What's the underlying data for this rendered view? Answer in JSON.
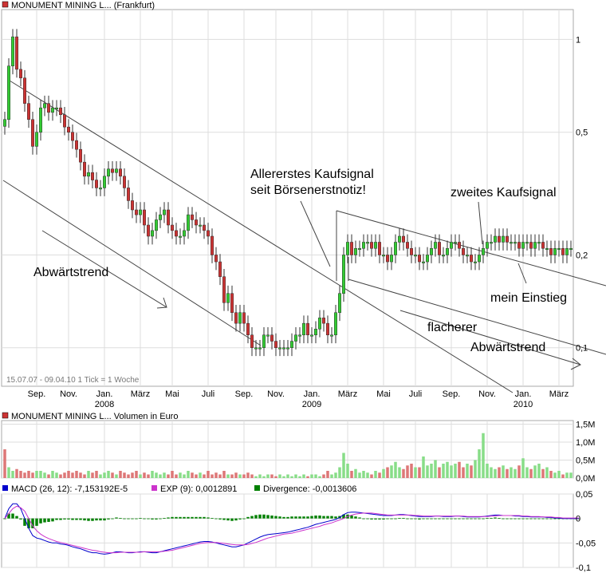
{
  "colors": {
    "up": "#33cc33",
    "down": "#cc3333",
    "grid": "#dddddd",
    "macd": "#0000cc",
    "exp": "#cc33cc",
    "div": "#008000",
    "vol_up": "#88dd88",
    "vol_down": "#dd7777"
  },
  "chart_data": [
    {
      "type": "candlestick",
      "title": "MONUMENT MINING L... (Frankfurt)",
      "subtitle": "15.07.07 - 09.04.10   1 Tick = 1 Woche",
      "yscale": "log",
      "ylim": [
        0.075,
        1.25
      ],
      "y_ticks": [
        {
          "v": 1,
          "label": "1"
        },
        {
          "v": 0.5,
          "label": "0,5"
        },
        {
          "v": 0.2,
          "label": "0,2"
        },
        {
          "v": 0.1,
          "label": "0,1"
        }
      ],
      "x_ticks": [
        {
          "w": 8,
          "label": "Sep."
        },
        {
          "w": 16,
          "label": "Nov."
        },
        {
          "w": 25,
          "label": "Jan.",
          "year": "2008"
        },
        {
          "w": 34,
          "label": "März"
        },
        {
          "w": 42,
          "label": "Mai"
        },
        {
          "w": 51,
          "label": "Juli"
        },
        {
          "w": 60,
          "label": "Sep."
        },
        {
          "w": 68,
          "label": "Nov."
        },
        {
          "w": 77,
          "label": "Jan.",
          "year": "2009"
        },
        {
          "w": 86,
          "label": "März"
        },
        {
          "w": 95,
          "label": "Mai"
        },
        {
          "w": 103,
          "label": "Juli"
        },
        {
          "w": 112,
          "label": "Sep."
        },
        {
          "w": 121,
          "label": "Nov."
        },
        {
          "w": 130,
          "label": "Jan.",
          "year": "2010"
        },
        {
          "w": 139,
          "label": "März"
        }
      ],
      "weekly_close": [
        0.55,
        0.82,
        1.02,
        0.8,
        0.75,
        0.62,
        0.55,
        0.45,
        0.5,
        0.6,
        0.62,
        0.58,
        0.6,
        0.6,
        0.57,
        0.52,
        0.5,
        0.47,
        0.44,
        0.4,
        0.36,
        0.37,
        0.35,
        0.33,
        0.33,
        0.36,
        0.38,
        0.37,
        0.38,
        0.36,
        0.33,
        0.3,
        0.28,
        0.27,
        0.28,
        0.25,
        0.23,
        0.24,
        0.26,
        0.27,
        0.28,
        0.25,
        0.24,
        0.23,
        0.23,
        0.24,
        0.27,
        0.26,
        0.25,
        0.25,
        0.24,
        0.23,
        0.2,
        0.19,
        0.17,
        0.14,
        0.15,
        0.13,
        0.12,
        0.13,
        0.12,
        0.11,
        0.1,
        0.1,
        0.1,
        0.11,
        0.11,
        0.105,
        0.1,
        0.1,
        0.1,
        0.1,
        0.105,
        0.11,
        0.11,
        0.12,
        0.11,
        0.11,
        0.115,
        0.125,
        0.12,
        0.11,
        0.11,
        0.13,
        0.15,
        0.2,
        0.22,
        0.2,
        0.21,
        0.21,
        0.22,
        0.22,
        0.21,
        0.22,
        0.2,
        0.2,
        0.19,
        0.2,
        0.22,
        0.23,
        0.22,
        0.21,
        0.2,
        0.2,
        0.19,
        0.19,
        0.2,
        0.21,
        0.22,
        0.2,
        0.2,
        0.21,
        0.22,
        0.22,
        0.21,
        0.2,
        0.2,
        0.19,
        0.19,
        0.2,
        0.21,
        0.22,
        0.22,
        0.23,
        0.22,
        0.23,
        0.22,
        0.22,
        0.22,
        0.21,
        0.22,
        0.22,
        0.21,
        0.22,
        0.22,
        0.21,
        0.21,
        0.2,
        0.21,
        0.21,
        0.2,
        0.21,
        0.21
      ],
      "annotations": [
        "Abwärtstrend",
        "Allererstes Kaufsignal",
        "seit Börsenerstnotiz!",
        "zweites Kaufsignal",
        "mein Einstieg",
        "flacherer",
        "Abwärtstrend"
      ]
    },
    {
      "type": "bar",
      "title": "MONUMENT MINING L... Volumen in Euro",
      "y_ticks": [
        {
          "v": 0,
          "label": "0,0M"
        },
        {
          "v": 0.5,
          "label": "0,5M"
        },
        {
          "v": 1.0,
          "label": "1,0M"
        },
        {
          "v": 1.5,
          "label": "1,5M"
        }
      ],
      "ylim": [
        0,
        1.6
      ],
      "values_millions": [
        0.8,
        0.3,
        0.2,
        0.25,
        0.2,
        0.15,
        0.2,
        0.15,
        0.2,
        0.2,
        0.15,
        0.1,
        0.2,
        0.15,
        0.1,
        0.15,
        0.2,
        0.15,
        0.2,
        0.15,
        0.1,
        0.2,
        0.15,
        0.2,
        0.1,
        0.15,
        0.2,
        0.15,
        0.1,
        0.2,
        0.15,
        0.1,
        0.15,
        0.2,
        0.1,
        0.15,
        0.1,
        0.2,
        0.15,
        0.1,
        0.15,
        0.1,
        0.2,
        0.1,
        0.15,
        0.1,
        0.2,
        0.15,
        0.1,
        0.15,
        0.1,
        0.2,
        0.1,
        0.15,
        0.1,
        0.2,
        0.1,
        0.1,
        0.15,
        0.1,
        0.1,
        0.15,
        0.1,
        0.05,
        0.1,
        0.05,
        0.1,
        0.1,
        0.05,
        0.1,
        0.05,
        0.1,
        0.05,
        0.1,
        0.05,
        0.1,
        0.05,
        0.1,
        0.1,
        0.05,
        0.1,
        0.2,
        0.1,
        0.15,
        0.3,
        0.7,
        0.4,
        0.2,
        0.25,
        0.15,
        0.2,
        0.15,
        0.1,
        0.2,
        0.15,
        0.25,
        0.3,
        0.35,
        0.45,
        0.3,
        0.25,
        0.35,
        0.4,
        0.3,
        0.3,
        0.6,
        0.35,
        0.4,
        0.5,
        0.3,
        0.4,
        0.45,
        0.35,
        0.4,
        0.45,
        0.3,
        0.4,
        0.35,
        0.5,
        0.8,
        1.25,
        0.4,
        0.3,
        0.25,
        0.3,
        0.35,
        0.25,
        0.3,
        0.25,
        0.35,
        0.55,
        0.3,
        0.25,
        0.35,
        0.4,
        0.25,
        0.3,
        0.2,
        0.15,
        0.2,
        0.1,
        0.15,
        0.15
      ]
    },
    {
      "type": "line",
      "legend": [
        {
          "name": "MACD (26, 12): -7,153192E-5",
          "color": "#0000cc"
        },
        {
          "name": "EXP (9): 0,0012891",
          "color": "#cc33cc"
        },
        {
          "name": "Divergence: -0,0013606",
          "color": "#008000"
        }
      ],
      "y_ticks": [
        {
          "v": 0.05,
          "label": "0,05"
        },
        {
          "v": 0,
          "label": "0"
        },
        {
          "v": -0.05,
          "label": "-0,05"
        },
        {
          "v": -0.1,
          "label": "-0,1"
        }
      ],
      "ylim": [
        -0.1,
        0.05
      ],
      "macd": [
        0.0,
        0.02,
        0.03,
        0.03,
        0.02,
        0.0,
        -0.02,
        -0.035,
        -0.04,
        -0.042,
        -0.045,
        -0.048,
        -0.05,
        -0.05,
        -0.052,
        -0.053,
        -0.055,
        -0.058,
        -0.06,
        -0.062,
        -0.065,
        -0.068,
        -0.07,
        -0.07,
        -0.072,
        -0.073,
        -0.072,
        -0.07,
        -0.068,
        -0.068,
        -0.069,
        -0.07,
        -0.07,
        -0.069,
        -0.068,
        -0.068,
        -0.069,
        -0.07,
        -0.07,
        -0.068,
        -0.066,
        -0.064,
        -0.062,
        -0.06,
        -0.058,
        -0.056,
        -0.054,
        -0.052,
        -0.05,
        -0.048,
        -0.047,
        -0.047,
        -0.048,
        -0.05,
        -0.052,
        -0.054,
        -0.056,
        -0.058,
        -0.058,
        -0.056,
        -0.054,
        -0.05,
        -0.046,
        -0.042,
        -0.038,
        -0.035,
        -0.033,
        -0.032,
        -0.031,
        -0.03,
        -0.029,
        -0.028,
        -0.026,
        -0.024,
        -0.022,
        -0.02,
        -0.018,
        -0.015,
        -0.012,
        -0.01,
        -0.008,
        -0.006,
        -0.004,
        -0.002,
        0.002,
        0.008,
        0.012,
        0.013,
        0.013,
        0.012,
        0.011,
        0.01,
        0.009,
        0.008,
        0.007,
        0.006,
        0.006,
        0.006,
        0.007,
        0.008,
        0.008,
        0.007,
        0.006,
        0.005,
        0.004,
        0.004,
        0.004,
        0.004,
        0.005,
        0.005,
        0.004,
        0.004,
        0.004,
        0.005,
        0.005,
        0.004,
        0.003,
        0.003,
        0.003,
        0.003,
        0.004,
        0.005,
        0.006,
        0.007,
        0.007,
        0.006,
        0.006,
        0.006,
        0.005,
        0.005,
        0.004,
        0.004,
        0.003,
        0.003,
        0.003,
        0.003,
        0.002,
        0.002,
        0.001,
        0.001,
        0.0,
        0.0,
        0.0,
        0.0,
        0.0
      ],
      "exp": [
        0.0,
        0.01,
        0.02,
        0.025,
        0.022,
        0.015,
        0.0,
        -0.015,
        -0.025,
        -0.032,
        -0.037,
        -0.041,
        -0.044,
        -0.047,
        -0.049,
        -0.051,
        -0.053,
        -0.055,
        -0.057,
        -0.059,
        -0.061,
        -0.063,
        -0.065,
        -0.066,
        -0.068,
        -0.069,
        -0.07,
        -0.07,
        -0.07,
        -0.069,
        -0.069,
        -0.069,
        -0.069,
        -0.069,
        -0.069,
        -0.068,
        -0.068,
        -0.068,
        -0.068,
        -0.068,
        -0.067,
        -0.066,
        -0.065,
        -0.063,
        -0.061,
        -0.059,
        -0.057,
        -0.055,
        -0.053,
        -0.051,
        -0.05,
        -0.049,
        -0.049,
        -0.049,
        -0.05,
        -0.051,
        -0.052,
        -0.053,
        -0.054,
        -0.054,
        -0.054,
        -0.053,
        -0.051,
        -0.049,
        -0.046,
        -0.043,
        -0.04,
        -0.038,
        -0.036,
        -0.034,
        -0.032,
        -0.031,
        -0.03,
        -0.028,
        -0.026,
        -0.024,
        -0.022,
        -0.02,
        -0.018,
        -0.016,
        -0.013,
        -0.011,
        -0.009,
        -0.006,
        -0.003,
        0.0,
        0.004,
        0.007,
        0.009,
        0.01,
        0.011,
        0.011,
        0.011,
        0.01,
        0.009,
        0.008,
        0.007,
        0.007,
        0.007,
        0.007,
        0.007,
        0.007,
        0.007,
        0.006,
        0.006,
        0.005,
        0.005,
        0.005,
        0.005,
        0.005,
        0.005,
        0.005,
        0.005,
        0.005,
        0.005,
        0.005,
        0.004,
        0.004,
        0.004,
        0.004,
        0.004,
        0.004,
        0.005,
        0.005,
        0.006,
        0.006,
        0.006,
        0.006,
        0.006,
        0.006,
        0.005,
        0.005,
        0.004,
        0.004,
        0.004,
        0.003,
        0.003,
        0.003,
        0.002,
        0.002,
        0.001,
        0.001,
        0.001,
        0.001,
        0.001
      ],
      "divergence": [
        0.0,
        0.01,
        0.01,
        0.005,
        -0.002,
        -0.015,
        -0.02,
        -0.02,
        -0.015,
        -0.01,
        -0.008,
        -0.007,
        -0.006,
        -0.003,
        -0.003,
        -0.002,
        -0.002,
        -0.003,
        -0.003,
        -0.003,
        -0.004,
        -0.005,
        -0.005,
        -0.004,
        -0.004,
        -0.004,
        -0.002,
        0.0,
        0.002,
        0.001,
        0.0,
        -0.001,
        -0.001,
        0.0,
        0.001,
        0.0,
        -0.001,
        -0.002,
        -0.002,
        0.0,
        0.001,
        0.002,
        0.003,
        0.003,
        0.003,
        0.003,
        0.003,
        0.003,
        0.003,
        0.003,
        0.003,
        0.002,
        0.001,
        -0.001,
        -0.002,
        -0.003,
        -0.004,
        -0.005,
        -0.004,
        -0.002,
        0.0,
        0.003,
        0.005,
        0.007,
        0.008,
        0.008,
        0.007,
        0.006,
        0.005,
        0.004,
        0.003,
        0.003,
        0.004,
        0.004,
        0.004,
        0.004,
        0.004,
        0.005,
        0.006,
        0.006,
        0.005,
        0.005,
        0.005,
        0.004,
        0.005,
        0.008,
        0.008,
        0.006,
        0.004,
        0.002,
        0.0,
        -0.001,
        -0.002,
        -0.002,
        -0.002,
        -0.002,
        -0.001,
        -0.001,
        0.0,
        0.001,
        0.001,
        0.0,
        -0.001,
        -0.001,
        -0.002,
        -0.001,
        -0.001,
        -0.001,
        0.0,
        0.0,
        -0.001,
        -0.001,
        -0.001,
        0.0,
        0.0,
        -0.001,
        -0.001,
        -0.001,
        -0.001,
        -0.001,
        0.0,
        0.001,
        0.001,
        0.002,
        0.001,
        0.0,
        0.0,
        0.0,
        -0.001,
        -0.001,
        -0.001,
        -0.001,
        -0.001,
        -0.001,
        -0.001,
        -0.001,
        -0.001,
        -0.001,
        -0.001,
        -0.001,
        -0.001,
        -0.001,
        -0.001,
        -0.001,
        -0.001
      ]
    }
  ]
}
